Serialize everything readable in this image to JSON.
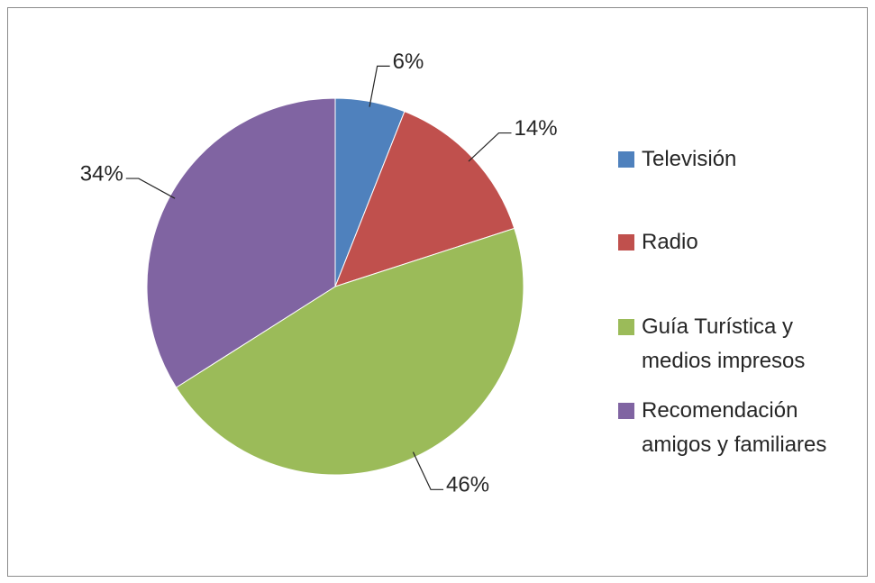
{
  "chart_data": {
    "type": "pie",
    "categories": [
      "Televisión",
      "Radio",
      "Guía Turística y medios impresos",
      "Recomendación amigos y familiares"
    ],
    "values": [
      6,
      14,
      46,
      34
    ],
    "value_labels": [
      "6%",
      "14%",
      "46%",
      "34%"
    ],
    "colors": [
      "#4f81bd",
      "#c0504d",
      "#9bbb59",
      "#8064a2"
    ],
    "legend": "right"
  }
}
